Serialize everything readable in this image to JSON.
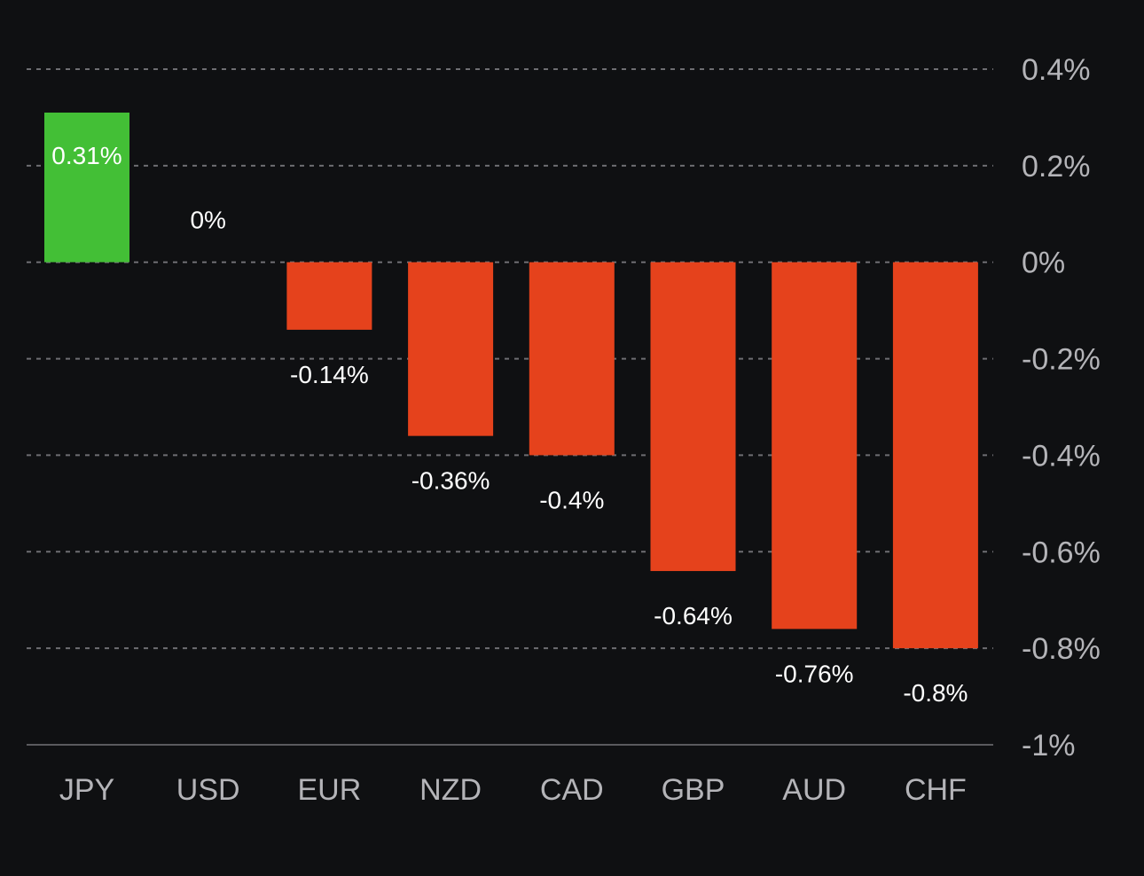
{
  "colors": {
    "background": "#0f1012",
    "positive": "#43bf36",
    "negative": "#e5421c",
    "grid": "#6e6e72",
    "axis_text": "#b4b4b8",
    "label_text": "#ffffff"
  },
  "chart_data": {
    "type": "bar",
    "categories": [
      "JPY",
      "USD",
      "EUR",
      "NZD",
      "CAD",
      "GBP",
      "AUD",
      "CHF"
    ],
    "values": [
      0.31,
      0,
      -0.14,
      -0.36,
      -0.4,
      -0.64,
      -0.76,
      -0.8
    ],
    "value_labels": [
      "0.31%",
      "0%",
      "-0.14%",
      "-0.36%",
      "-0.4%",
      "-0.64%",
      "-0.76%",
      "-0.8%"
    ],
    "ylim": [
      -1,
      0.4
    ],
    "yticks": [
      0.4,
      0.2,
      0,
      -0.2,
      -0.4,
      -0.6,
      -0.8,
      -1
    ],
    "ytick_labels": [
      "0.4%",
      "0.2%",
      "0%",
      "-0.2%",
      "-0.4%",
      "-0.6%",
      "-0.8%",
      "-1%"
    ],
    "y_axis_position": "right",
    "grid": true,
    "legend": "none",
    "title": "",
    "xlabel": "",
    "ylabel": ""
  }
}
